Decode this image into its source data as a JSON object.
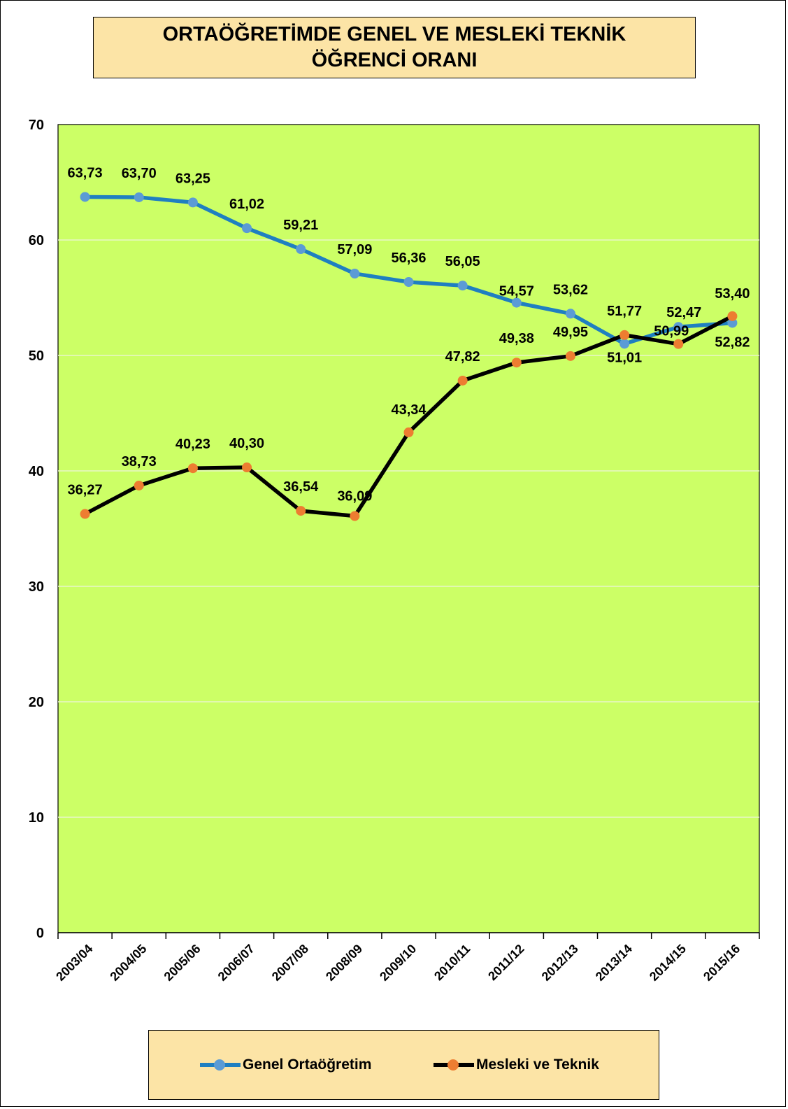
{
  "chart_data": {
    "type": "line",
    "title_lines": [
      "ORTAÖĞRETİMDE GENEL VE MESLEKİ TEKNİK",
      "ÖĞRENCİ ORANI"
    ],
    "categories": [
      "2003/04",
      "2004/05",
      "2005/06",
      "2006/07",
      "2007/08",
      "2008/09",
      "2009/10",
      "2010/11",
      "2011/12",
      "2012/13",
      "2013/14",
      "2014/15",
      "2015/16"
    ],
    "ylim": [
      0,
      70
    ],
    "yticks": [
      0,
      10,
      20,
      30,
      40,
      50,
      60,
      70
    ],
    "grid": true,
    "legend_position": "bottom",
    "plot_background": "#CCFF66",
    "series": [
      {
        "name": "Genel Ortaöğretim",
        "line_color": "#1F7FC1",
        "marker_color": "#5B9BD5",
        "values": [
          63.73,
          63.7,
          63.25,
          61.02,
          59.21,
          57.09,
          56.36,
          56.05,
          54.57,
          53.62,
          51.01,
          52.47,
          52.82
        ],
        "labels": [
          "63,73",
          "63,70",
          "63,25",
          "61,02",
          "59,21",
          "57,09",
          "56,36",
          "56,05",
          "54,57",
          "53,62",
          "51,01",
          "52,47",
          "52,82"
        ]
      },
      {
        "name": "Mesleki ve Teknik",
        "line_color": "#000000",
        "marker_color": "#ED7D31",
        "values": [
          36.27,
          38.73,
          40.23,
          40.3,
          36.54,
          36.09,
          43.34,
          47.82,
          49.38,
          49.95,
          51.77,
          50.99,
          53.4
        ],
        "labels": [
          "36,27",
          "38,73",
          "40,23",
          "40,30",
          "36,54",
          "36,09",
          "43,34",
          "47,82",
          "49,38",
          "49,95",
          "51,77",
          "50,99",
          "53,40"
        ]
      }
    ]
  }
}
